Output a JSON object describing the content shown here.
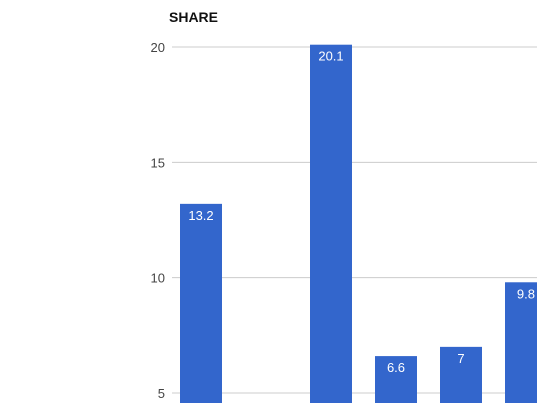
{
  "chart_data": {
    "type": "bar",
    "title": "SHARE",
    "xlabel": "",
    "ylabel": "",
    "categories": [
      "",
      "",
      "",
      "",
      "",
      ""
    ],
    "values": [
      13.2,
      null,
      20.1,
      6.6,
      7,
      9.8
    ],
    "data_labels": [
      "13.2",
      "",
      "20.1",
      "6.6",
      "7",
      "9.8"
    ],
    "y_ticks": [
      5,
      10,
      15,
      20
    ],
    "ylim": [
      3.5,
      20.2
    ],
    "grid": true,
    "legend": "none",
    "bar_color": "#3366cc"
  }
}
